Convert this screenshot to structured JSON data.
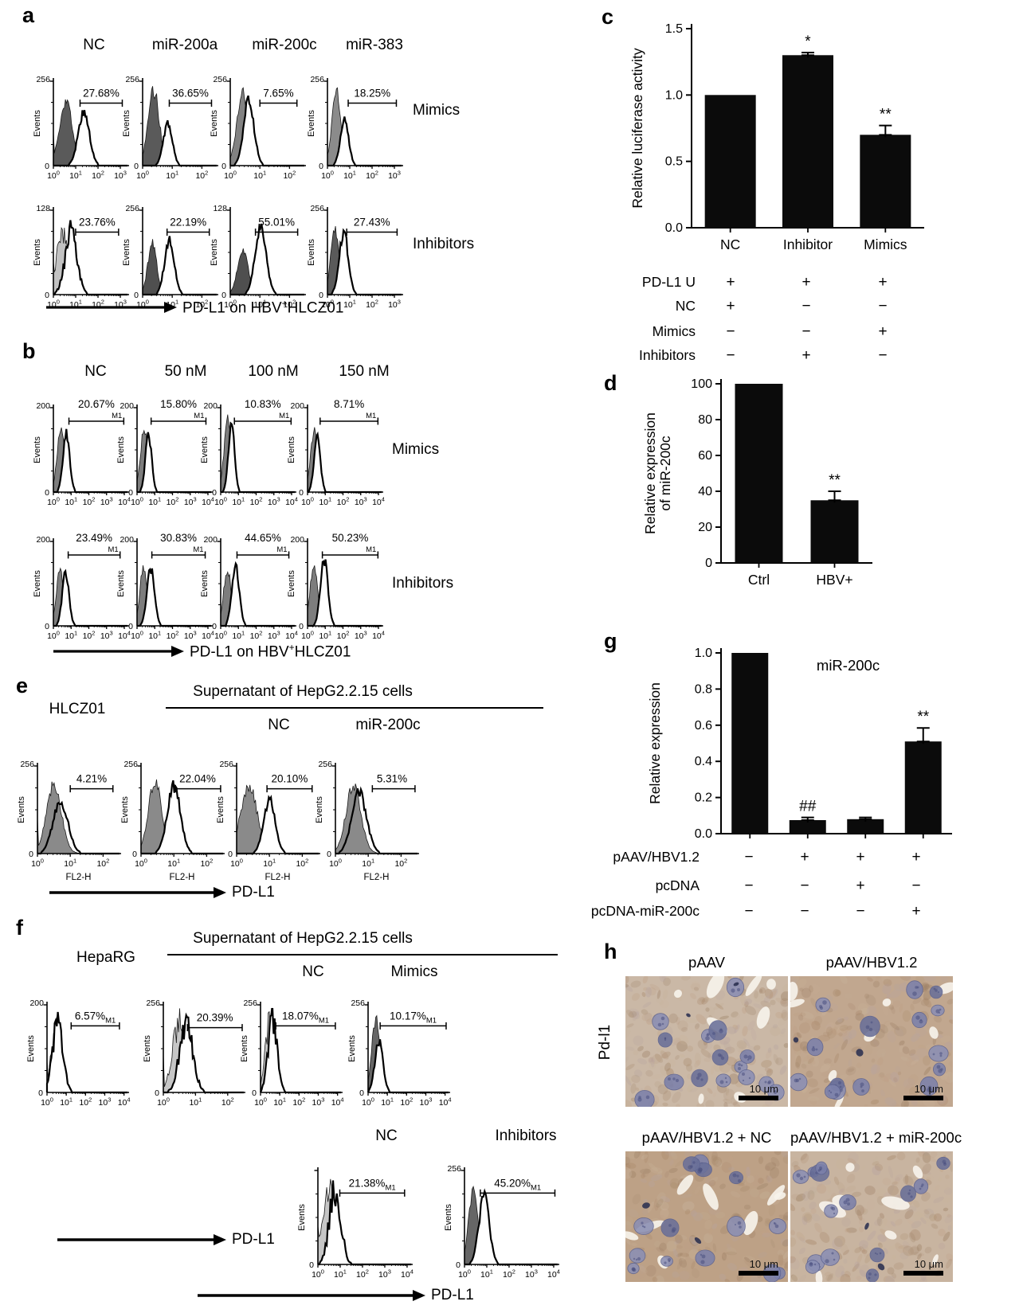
{
  "figure": {
    "panel_a": {
      "letter": "a",
      "col_titles": [
        "NC",
        "miR-200a",
        "miR-200c",
        "miR-383"
      ],
      "row_labels": [
        "Mimics",
        "Inhibitors"
      ],
      "y_axis_label": "Events",
      "x_arrow_label": {
        "pre": "PD-L1 on HBV",
        "sup": "+",
        "post": "HLCZ01"
      },
      "hists": [
        {
          "pct": "27.68%",
          "m1": "",
          "m1_style": "none",
          "ymax": "256",
          "dec": 3,
          "fill": "#5a5a5a",
          "fc": 0.17,
          "fh": 0.8,
          "fw": 0.085,
          "oc": 0.41,
          "oh": 0.66,
          "ow": 0.075,
          "g0": 0.36,
          "g1": 0.93,
          "ls": 1
        },
        {
          "pct": "36.65%",
          "m1": "",
          "m1_style": "none",
          "ymax": "256",
          "dec": 2,
          "fill": "#5a5a5a",
          "fc": 0.15,
          "fh": 0.92,
          "fw": 0.075,
          "oc": 0.34,
          "oh": 0.52,
          "ow": 0.06,
          "g0": 0.36,
          "g1": 0.93
        },
        {
          "pct": "7.65%",
          "m1": "",
          "m1_style": "none",
          "ymax": "256",
          "dec": 2,
          "fill": "#828282",
          "fc": 0.17,
          "fh": 0.88,
          "fw": 0.08,
          "oc": 0.25,
          "oh": 0.8,
          "ow": 0.07,
          "g0": 0.4,
          "g1": 0.9
        },
        {
          "pct": "18.25%",
          "m1": "",
          "m1_style": "none",
          "ymax": "256",
          "dec": 3,
          "fill": "#8b8b8b",
          "fc": 0.12,
          "fh": 0.9,
          "fw": 0.06,
          "oc": 0.23,
          "oh": 0.56,
          "ow": 0.055,
          "g0": 0.28,
          "g1": 0.93
        },
        {
          "pct": "23.76%",
          "m1": "",
          "m1_style": "none",
          "ymax": "128",
          "dec": 3,
          "fill": "#c2c2c2",
          "fc": 0.14,
          "fh": 0.72,
          "fw": 0.1,
          "oc": 0.24,
          "oh": 0.8,
          "ow": 0.08,
          "g0": 0.3,
          "g1": 0.88,
          "spiky": 1,
          "ls": 1
        },
        {
          "pct": "22.19%",
          "m1": "",
          "m1_style": "none",
          "ymax": "256",
          "dec": 2,
          "fill": "#4f4f4f",
          "fc": 0.13,
          "fh": 0.62,
          "fw": 0.06,
          "oc": 0.36,
          "oh": 0.66,
          "ow": 0.065,
          "g0": 0.33,
          "g1": 0.9
        },
        {
          "pct": "55.01%",
          "m1": "",
          "m1_style": "none",
          "ymax": "128",
          "dec": 2,
          "fill": "#4f4f4f",
          "fc": 0.17,
          "fh": 0.56,
          "fw": 0.07,
          "oc": 0.41,
          "oh": 0.8,
          "ow": 0.075,
          "g0": 0.34,
          "g1": 0.91
        },
        {
          "pct": "27.43%",
          "m1": "",
          "m1_style": "none",
          "ymax": "256",
          "dec": 3,
          "fill": "#5a5a5a",
          "fc": 0.1,
          "fh": 0.82,
          "fw": 0.055,
          "oc": 0.22,
          "oh": 0.78,
          "ow": 0.06,
          "g0": 0.26,
          "g1": 0.94
        }
      ]
    },
    "panel_b": {
      "letter": "b",
      "col_titles": [
        "NC",
        "50 nM",
        "100 nM",
        "150 nM"
      ],
      "row_labels": [
        "Mimics",
        "Inhibitors"
      ],
      "y_axis_label": "Events",
      "x_arrow_label": {
        "pre": "PD-L1 on HBV",
        "sup": "+",
        "post": "HLCZ01"
      },
      "hists": [
        {
          "pct": "20.67%",
          "m1": "M1",
          "m1_style": "end",
          "ymax": "200",
          "dec": 4,
          "fill": "#7d7d7d",
          "fc": 0.1,
          "fh": 0.78,
          "fw": 0.05,
          "oc": 0.175,
          "oh": 0.72,
          "ow": 0.045,
          "g0": 0.21,
          "g1": 0.95
        },
        {
          "pct": "15.80%",
          "m1": "M1",
          "m1_style": "end",
          "ymax": "200",
          "dec": 4,
          "fill": "#7d7d7d",
          "fc": 0.095,
          "fh": 0.76,
          "fw": 0.05,
          "oc": 0.155,
          "oh": 0.7,
          "ow": 0.042,
          "g0": 0.19,
          "g1": 0.93
        },
        {
          "pct": "10.83%",
          "m1": "M1",
          "m1_style": "end",
          "ymax": "200",
          "dec": 4,
          "fill": "#7d7d7d",
          "fc": 0.095,
          "fh": 0.92,
          "fw": 0.048,
          "oc": 0.145,
          "oh": 0.88,
          "ow": 0.04,
          "g0": 0.185,
          "g1": 0.95
        },
        {
          "pct": "8.71%",
          "m1": "M1",
          "m1_style": "end",
          "ymax": "200",
          "dec": 4,
          "fill": "#7d7d7d",
          "fc": 0.09,
          "fh": 0.76,
          "fw": 0.05,
          "oc": 0.13,
          "oh": 0.68,
          "ow": 0.042,
          "g0": 0.17,
          "g1": 0.95
        },
        {
          "pct": "23.49%",
          "m1": "M1",
          "m1_style": "end",
          "ymax": "200",
          "dec": 4,
          "fill": "#7d7d7d",
          "fc": 0.09,
          "fh": 0.7,
          "fw": 0.05,
          "oc": 0.165,
          "oh": 0.66,
          "ow": 0.045,
          "g0": 0.2,
          "g1": 0.9
        },
        {
          "pct": "30.83%",
          "m1": "M1",
          "m1_style": "end",
          "ymax": "200",
          "dec": 4,
          "fill": "#7d7d7d",
          "fc": 0.09,
          "fh": 0.72,
          "fw": 0.05,
          "oc": 0.185,
          "oh": 0.7,
          "ow": 0.05,
          "g0": 0.2,
          "g1": 0.92
        },
        {
          "pct": "44.65%",
          "m1": "M1",
          "m1_style": "end",
          "ymax": "200",
          "dec": 4,
          "fill": "#7d7d7d",
          "fc": 0.09,
          "fh": 0.7,
          "fw": 0.05,
          "oc": 0.2,
          "oh": 0.72,
          "ow": 0.05,
          "g0": 0.22,
          "g1": 0.92
        },
        {
          "pct": "50.23%",
          "m1": "M1",
          "m1_style": "end",
          "ymax": "200",
          "dec": 4,
          "fill": "#7d7d7d",
          "fc": 0.085,
          "fh": 0.74,
          "fw": 0.05,
          "oc": 0.225,
          "oh": 0.8,
          "ow": 0.05,
          "g0": 0.2,
          "g1": 0.95
        }
      ]
    },
    "panel_e": {
      "letter": "e",
      "left_title": "HLCZ01",
      "group_title": "Supernatant of HepG2.2.15 cells",
      "sub_titles": [
        "NC",
        "miR-200c"
      ],
      "y_axis_label": "Events",
      "x_arrow_label": "PD-L1",
      "hists": [
        {
          "pct": "4.21%",
          "m1": "",
          "m1_style": "none",
          "ymax": "256",
          "dec": 2,
          "fill": "#8a8a8a",
          "fc": 0.2,
          "fh": 0.82,
          "fw": 0.09,
          "oc": 0.28,
          "oh": 0.62,
          "ow": 0.09,
          "g0": 0.4,
          "g1": 0.92,
          "xlabel": "FL2-H",
          "gtop": 1,
          "ls": 1
        },
        {
          "pct": "22.04%",
          "m1": "",
          "m1_style": "none",
          "ymax": "256",
          "dec": 2,
          "fill": "#8a8a8a",
          "fc": 0.17,
          "fh": 0.85,
          "fw": 0.08,
          "oc": 0.4,
          "oh": 0.8,
          "ow": 0.08,
          "g0": 0.42,
          "g1": 0.97,
          "xlabel": "FL2-H"
        },
        {
          "pct": "20.10%",
          "m1": "",
          "m1_style": "none",
          "ymax": "256",
          "dec": 2,
          "fill": "#8a8a8a",
          "fc": 0.15,
          "fh": 0.8,
          "fw": 0.1,
          "oc": 0.4,
          "oh": 0.63,
          "ow": 0.07,
          "g0": 0.37,
          "g1": 0.92,
          "xlabel": "FL2-H"
        },
        {
          "pct": "5.31%",
          "m1": "",
          "m1_style": "none",
          "ymax": "256",
          "dec": 2,
          "fill": "#8a8a8a",
          "fc": 0.22,
          "fh": 0.8,
          "fw": 0.09,
          "oc": 0.29,
          "oh": 0.72,
          "ow": 0.09,
          "g0": 0.45,
          "g1": 0.97,
          "xlabel": "FL2-H",
          "gtop": 1
        }
      ]
    },
    "panel_f": {
      "letter": "f",
      "left_title": "HepaRG",
      "group_title": "Supernatant of HepG2.2.15 cells",
      "row1_sub_titles": [
        "NC",
        "Mimics"
      ],
      "row2_sub_titles": [
        "NC",
        "Inhibitors"
      ],
      "y_axis_label": "Events",
      "x_arrow_label": "PD-L1",
      "row1": [
        {
          "pct": "6.57%",
          "m1": "M1",
          "m1_style": "sub",
          "ymax": "200",
          "dec": 4,
          "fill": "#c6c6c6",
          "fc": 0.115,
          "fh": 0.78,
          "fw": 0.06,
          "oc": 0.13,
          "oh": 0.82,
          "ow": 0.065,
          "g0": 0.3,
          "g1": 0.9,
          "spiky": 1,
          "ls": 1
        },
        {
          "pct": "20.39%",
          "m1": "",
          "m1_style": "none",
          "ymax": "256",
          "dec": 2,
          "fill": "#c6c6c6",
          "fc": 0.2,
          "fh": 0.86,
          "fw": 0.085,
          "oc": 0.285,
          "oh": 0.88,
          "ow": 0.08,
          "g0": 0.3,
          "g1": 0.98,
          "spiky": 1,
          "ls": 1
        },
        {
          "pct": "18.07%",
          "m1": "M1",
          "m1_style": "sub",
          "ymax": "256",
          "dec": 4,
          "fill": "#c6c6c6",
          "fc": 0.115,
          "fh": 0.86,
          "fw": 0.055,
          "oc": 0.15,
          "oh": 0.88,
          "ow": 0.055,
          "g0": 0.19,
          "g1": 0.93,
          "spiky": 1
        },
        {
          "pct": "10.17%",
          "m1": "M1",
          "m1_style": "sub",
          "ymax": "256",
          "dec": 4,
          "fill": "#666666",
          "fc": 0.095,
          "fh": 0.86,
          "fw": 0.05,
          "oc": 0.135,
          "oh": 0.6,
          "ow": 0.05,
          "g0": 0.15,
          "g1": 0.97
        }
      ],
      "row2": [
        {
          "pct": "21.38%",
          "m1": "M1",
          "m1_style": "sub",
          "ymax": "",
          "dec": 4,
          "fill": "#c6c6c6",
          "fc": 0.12,
          "fh": 0.8,
          "fw": 0.075,
          "oc": 0.185,
          "oh": 0.85,
          "ow": 0.06,
          "g0": 0.235,
          "g1": 0.93,
          "spiky": 1,
          "ls": 1
        },
        {
          "pct": "45.20%",
          "m1": "M1",
          "m1_style": "sub",
          "ymax": "256",
          "dec": 4,
          "fill": "#666666",
          "fc": 0.095,
          "fh": 0.8,
          "fw": 0.05,
          "oc": 0.21,
          "oh": 0.75,
          "ow": 0.055,
          "g0": 0.17,
          "g1": 0.97
        }
      ]
    },
    "panel_h": {
      "letter": "h",
      "side_label": "Pd-l1",
      "images": [
        {
          "title": "pAAV",
          "scale": "10 μm",
          "stain": 0.35,
          "seed": 11
        },
        {
          "title": "pAAV/HBV1.2",
          "scale": "10 μm",
          "stain": 0.75,
          "seed": 22
        },
        {
          "title": "pAAV/HBV1.2 + NC",
          "scale": "10 μm",
          "stain": 0.9,
          "seed": 33
        },
        {
          "title": "pAAV/HBV1.2 + miR-200c",
          "scale": "10 μm",
          "stain": 0.45,
          "seed": 44
        }
      ]
    }
  },
  "chart_data": [
    {
      "id": "c",
      "letter": "c",
      "type": "bar",
      "ylabel": "Relative luciferase activity",
      "categories": [
        "NC",
        "Inhibitor",
        "Mimics"
      ],
      "values": [
        1.0,
        1.3,
        0.7
      ],
      "errors": [
        0,
        0.02,
        0.07
      ],
      "sig": [
        "",
        "*",
        "**"
      ],
      "ytick_labels": [
        "0.0",
        "0.5",
        "1.0",
        "1.5"
      ],
      "ylim": [
        0,
        1.5
      ],
      "bar_color": "#0b0b0b",
      "table_rows": [
        {
          "label": "PD-L1 U",
          "cells": [
            "+",
            "+",
            "+"
          ]
        },
        {
          "label": "NC",
          "cells": [
            "+",
            "−",
            "−"
          ]
        },
        {
          "label": "Mimics",
          "cells": [
            "−",
            "−",
            "+"
          ]
        },
        {
          "label": "Inhibitors",
          "cells": [
            "−",
            "+",
            "−"
          ]
        }
      ]
    },
    {
      "id": "d",
      "letter": "d",
      "type": "bar",
      "ylabel_lines": [
        "Relative expression",
        "of miR-200c"
      ],
      "categories": [
        "Ctrl",
        "HBV+"
      ],
      "values": [
        100,
        35
      ],
      "errors": [
        0,
        5
      ],
      "sig": [
        "",
        "**"
      ],
      "ytick_labels": [
        "0",
        "20",
        "40",
        "60",
        "80",
        "100"
      ],
      "ylim": [
        0,
        100
      ],
      "bar_color": "#0b0b0b"
    },
    {
      "id": "g",
      "letter": "g",
      "type": "bar",
      "title": "miR-200c",
      "ylabel": "Relative expression",
      "categories": [
        "",
        "",
        "",
        ""
      ],
      "values": [
        1.0,
        0.075,
        0.08,
        0.51
      ],
      "errors": [
        0,
        0.015,
        0.01,
        0.075
      ],
      "sig": [
        "",
        "##",
        "",
        "**"
      ],
      "ytick_labels": [
        "0.0",
        "0.2",
        "0.4",
        "0.6",
        "0.8",
        "1.0"
      ],
      "ylim": [
        0,
        1.0
      ],
      "bar_color": "#0b0b0b",
      "table_rows": [
        {
          "label": "pAAV/HBV1.2",
          "cells": [
            "−",
            "+",
            "+",
            "+"
          ]
        },
        {
          "label": "pcDNA",
          "cells": [
            "−",
            "−",
            "+",
            "−"
          ]
        },
        {
          "label": "pcDNA-miR-200c",
          "cells": [
            "−",
            "−",
            "−",
            "+"
          ]
        }
      ]
    }
  ]
}
